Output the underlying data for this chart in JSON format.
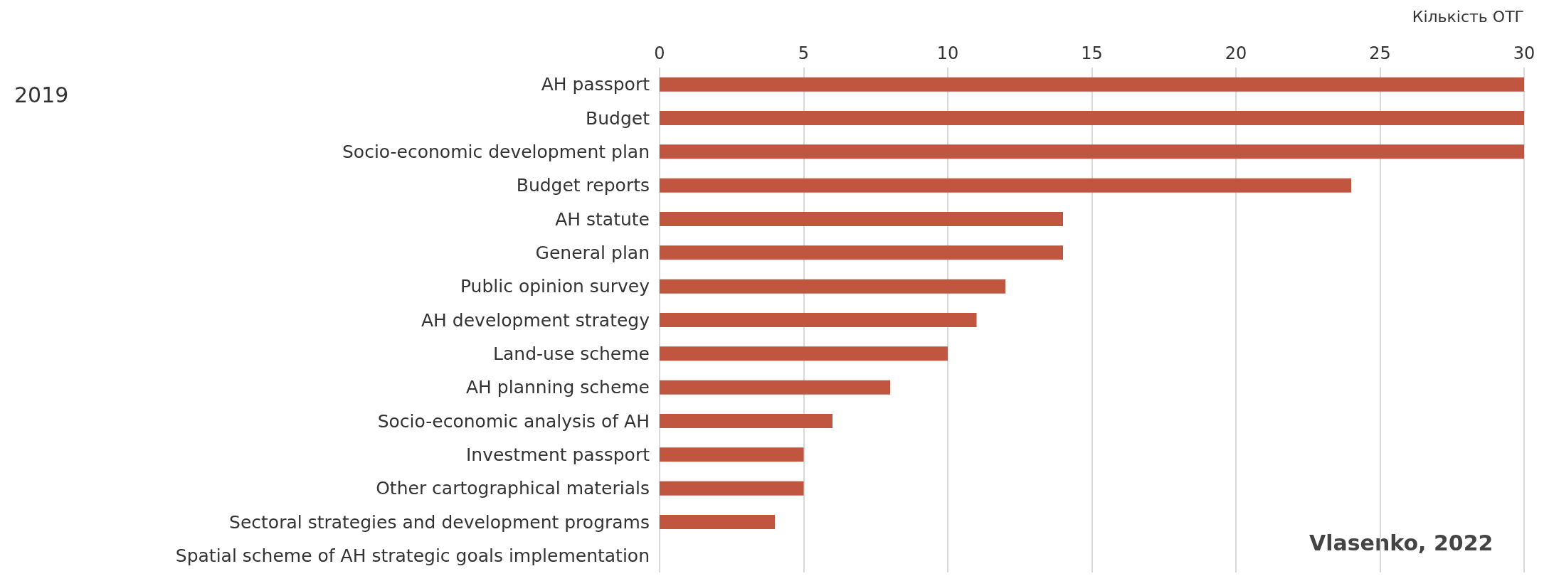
{
  "chart_data": {
    "type": "bar",
    "orientation": "horizontal",
    "xlabel": "Кількість ОТГ",
    "categories": [
      "AH passport",
      "Budget",
      "Socio-economic development plan",
      "Budget reports",
      "AH statute",
      "General plan",
      "Public opinion survey",
      "AH development strategy",
      "Land-use scheme",
      "AH planning scheme",
      "Socio-economic analysis of AH",
      "Investment passport",
      "Other cartographical materials",
      "Sectoral strategies and development programs",
      "Spatial scheme of AH strategic goals implementation"
    ],
    "values": [
      30,
      30,
      30,
      24,
      14,
      14,
      12,
      11,
      10,
      8,
      6,
      5,
      5,
      4,
      0
    ],
    "color": "#c0563f",
    "xlim": [
      0,
      30
    ],
    "xticks": [
      0,
      5,
      10,
      15,
      20,
      25,
      30
    ],
    "grid": "x",
    "annotations": [
      "2019",
      "Vlasenko, 2022"
    ]
  }
}
